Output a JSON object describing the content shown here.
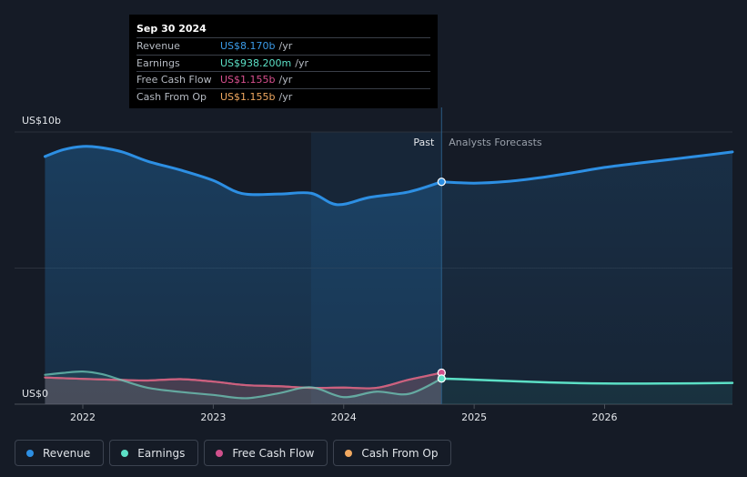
{
  "tooltip": {
    "date": "Sep 30 2024",
    "rows": [
      {
        "label": "Revenue",
        "value": "US$8.170b",
        "unit": "/yr",
        "color": "#3b9be8"
      },
      {
        "label": "Earnings",
        "value": "US$938.200m",
        "unit": "/yr",
        "color": "#5ce0c6"
      },
      {
        "label": "Free Cash Flow",
        "value": "US$1.155b",
        "unit": "/yr",
        "color": "#d9508f"
      },
      {
        "label": "Cash From Op",
        "value": "US$1.155b",
        "unit": "/yr",
        "color": "#f0a860"
      }
    ]
  },
  "legend": [
    {
      "label": "Revenue",
      "color": "#2d8fe3"
    },
    {
      "label": "Earnings",
      "color": "#5ce0c6"
    },
    {
      "label": "Free Cash Flow",
      "color": "#d0508c"
    },
    {
      "label": "Cash From Op",
      "color": "#f0a860"
    }
  ],
  "chart_data": {
    "type": "line",
    "yaxis_labels": {
      "top": "US$10b",
      "bottom": "US$0"
    },
    "ylim": [
      0,
      10
    ],
    "xlim": [
      2021.7,
      2026.98
    ],
    "x_ticks": [
      2022,
      2023,
      2024,
      2025,
      2026
    ],
    "x_tick_labels": [
      "2022",
      "2023",
      "2024",
      "2025",
      "2026"
    ],
    "past_label": "Past",
    "forecast_label": "Analysts Forecasts",
    "past_end_x": 2024.75,
    "grid": true,
    "series": [
      {
        "name": "Revenue",
        "color": "#2d8fe3",
        "x": [
          2021.71,
          2021.85,
          2022.0,
          2022.12,
          2022.3,
          2022.5,
          2022.75,
          2023.0,
          2023.22,
          2023.5,
          2023.75,
          2023.95,
          2024.2,
          2024.5,
          2024.75
        ],
        "y": [
          9.1,
          9.35,
          9.47,
          9.44,
          9.27,
          8.92,
          8.6,
          8.22,
          7.74,
          7.72,
          7.75,
          7.33,
          7.6,
          7.8,
          8.17
        ],
        "forecast_x": [
          2024.75,
          2025.0,
          2025.25,
          2025.5,
          2025.75,
          2026.0,
          2026.25,
          2026.5,
          2026.75,
          2026.98
        ],
        "forecast_y": [
          8.17,
          8.12,
          8.18,
          8.32,
          8.5,
          8.7,
          8.85,
          8.99,
          9.13,
          9.27
        ]
      },
      {
        "name": "Earnings",
        "color": "#5ce0c6",
        "x": [
          2021.71,
          2021.85,
          2022.0,
          2022.15,
          2022.3,
          2022.5,
          2022.75,
          2023.0,
          2023.25,
          2023.5,
          2023.75,
          2024.0,
          2024.25,
          2024.5,
          2024.75
        ],
        "y": [
          1.08,
          1.15,
          1.2,
          1.1,
          0.88,
          0.6,
          0.45,
          0.34,
          0.22,
          0.4,
          0.62,
          0.26,
          0.46,
          0.38,
          0.94
        ],
        "forecast_x": [
          2024.75,
          2025.0,
          2025.5,
          2026.0,
          2026.5,
          2026.98
        ],
        "forecast_y": [
          0.94,
          0.9,
          0.81,
          0.76,
          0.76,
          0.78
        ]
      },
      {
        "name": "Free Cash Flow",
        "color": "#d0508c",
        "x": [
          2021.71,
          2022.0,
          2022.3,
          2022.5,
          2022.75,
          2023.0,
          2023.25,
          2023.5,
          2023.75,
          2024.0,
          2024.25,
          2024.5,
          2024.75
        ],
        "y": [
          0.98,
          0.93,
          0.89,
          0.87,
          0.92,
          0.83,
          0.7,
          0.66,
          0.6,
          0.61,
          0.6,
          0.9,
          1.155
        ]
      },
      {
        "name": "Cash From Op",
        "color": "#f0a860",
        "x": [
          2021.71,
          2022.0,
          2022.3,
          2022.5,
          2022.75,
          2023.0,
          2023.25,
          2023.5,
          2023.75,
          2024.0,
          2024.25,
          2024.5,
          2024.75
        ],
        "y": [
          0.98,
          0.93,
          0.89,
          0.87,
          0.92,
          0.83,
          0.7,
          0.66,
          0.6,
          0.61,
          0.6,
          0.9,
          1.155
        ]
      }
    ]
  }
}
